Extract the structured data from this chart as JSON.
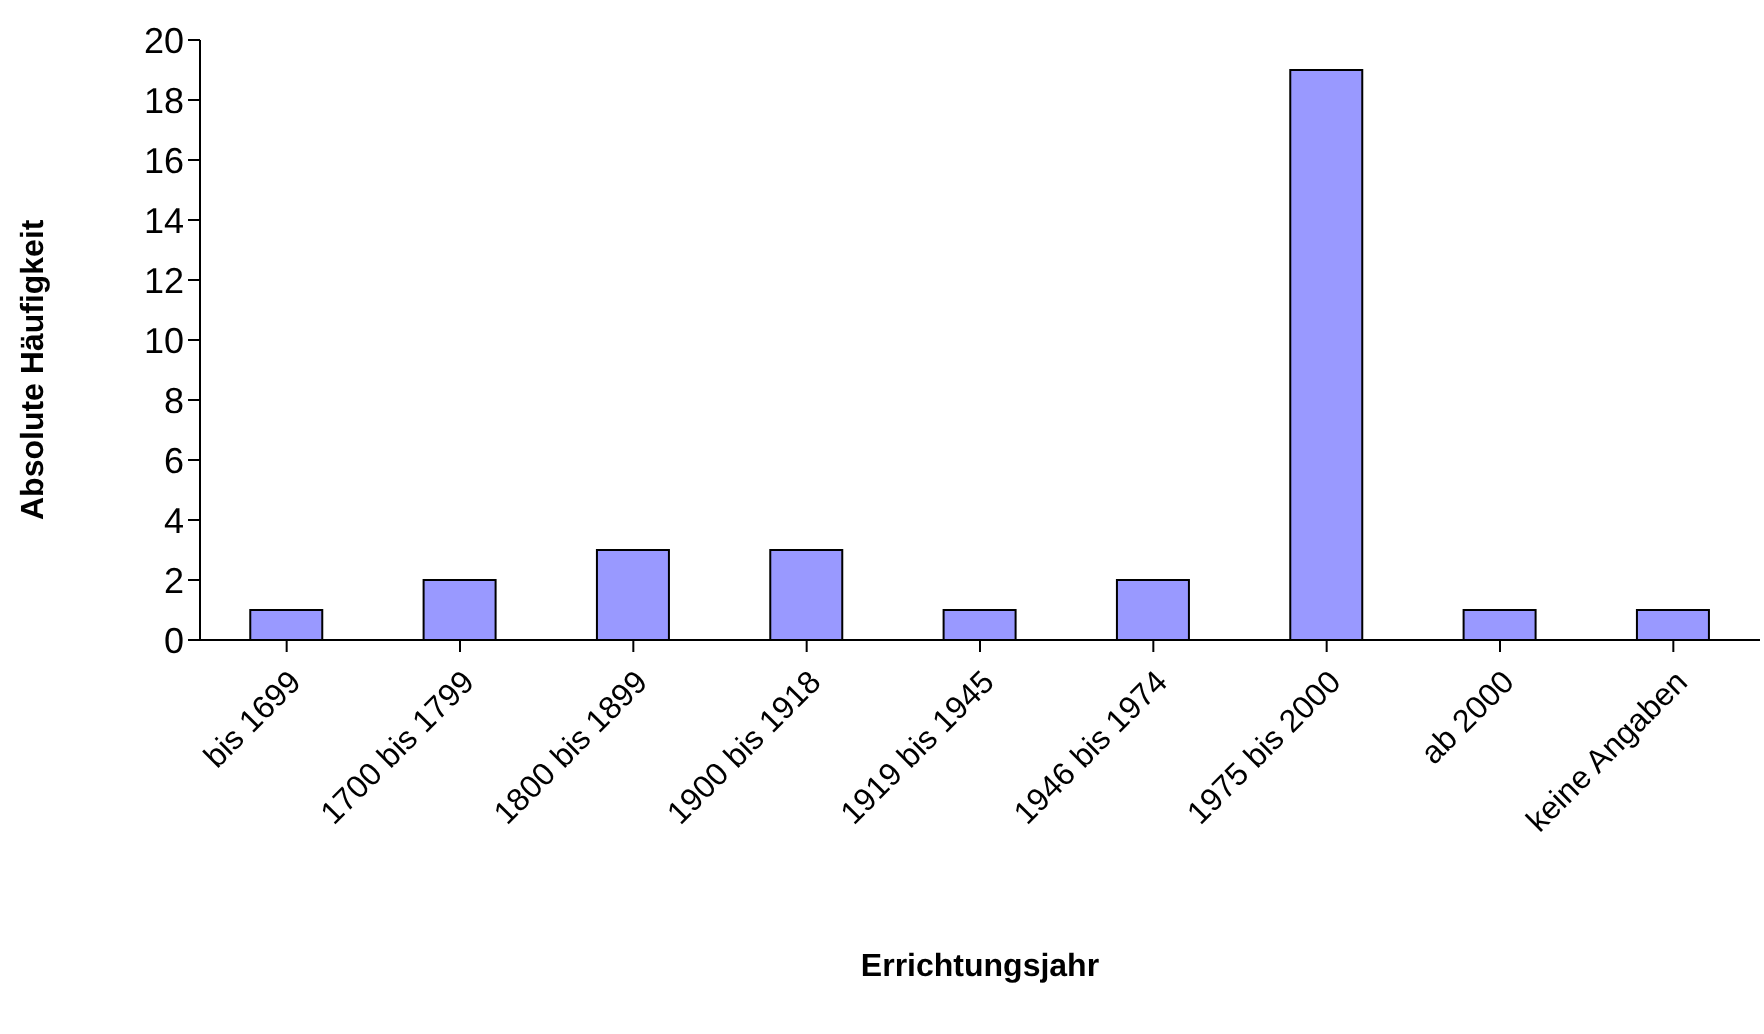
{
  "chart_data": {
    "type": "bar",
    "xlabel": "Errichtungsjahr",
    "ylabel": "Absolute Häufigkeit",
    "categories": [
      "bis 1699",
      "1700 bis 1799",
      "1800 bis 1899",
      "1900 bis 1918",
      "1919 bis 1945",
      "1946 bis 1974",
      "1975 bis 2000",
      "ab 2000",
      "keine Angaben"
    ],
    "values": [
      1,
      2,
      3,
      3,
      1,
      2,
      19,
      1,
      1
    ],
    "color": "#9999ff",
    "ylim": [
      0,
      20
    ],
    "yticks": [
      0,
      2,
      4,
      6,
      8,
      10,
      12,
      14,
      16,
      18,
      20
    ],
    "grid": false,
    "legend": false
  }
}
